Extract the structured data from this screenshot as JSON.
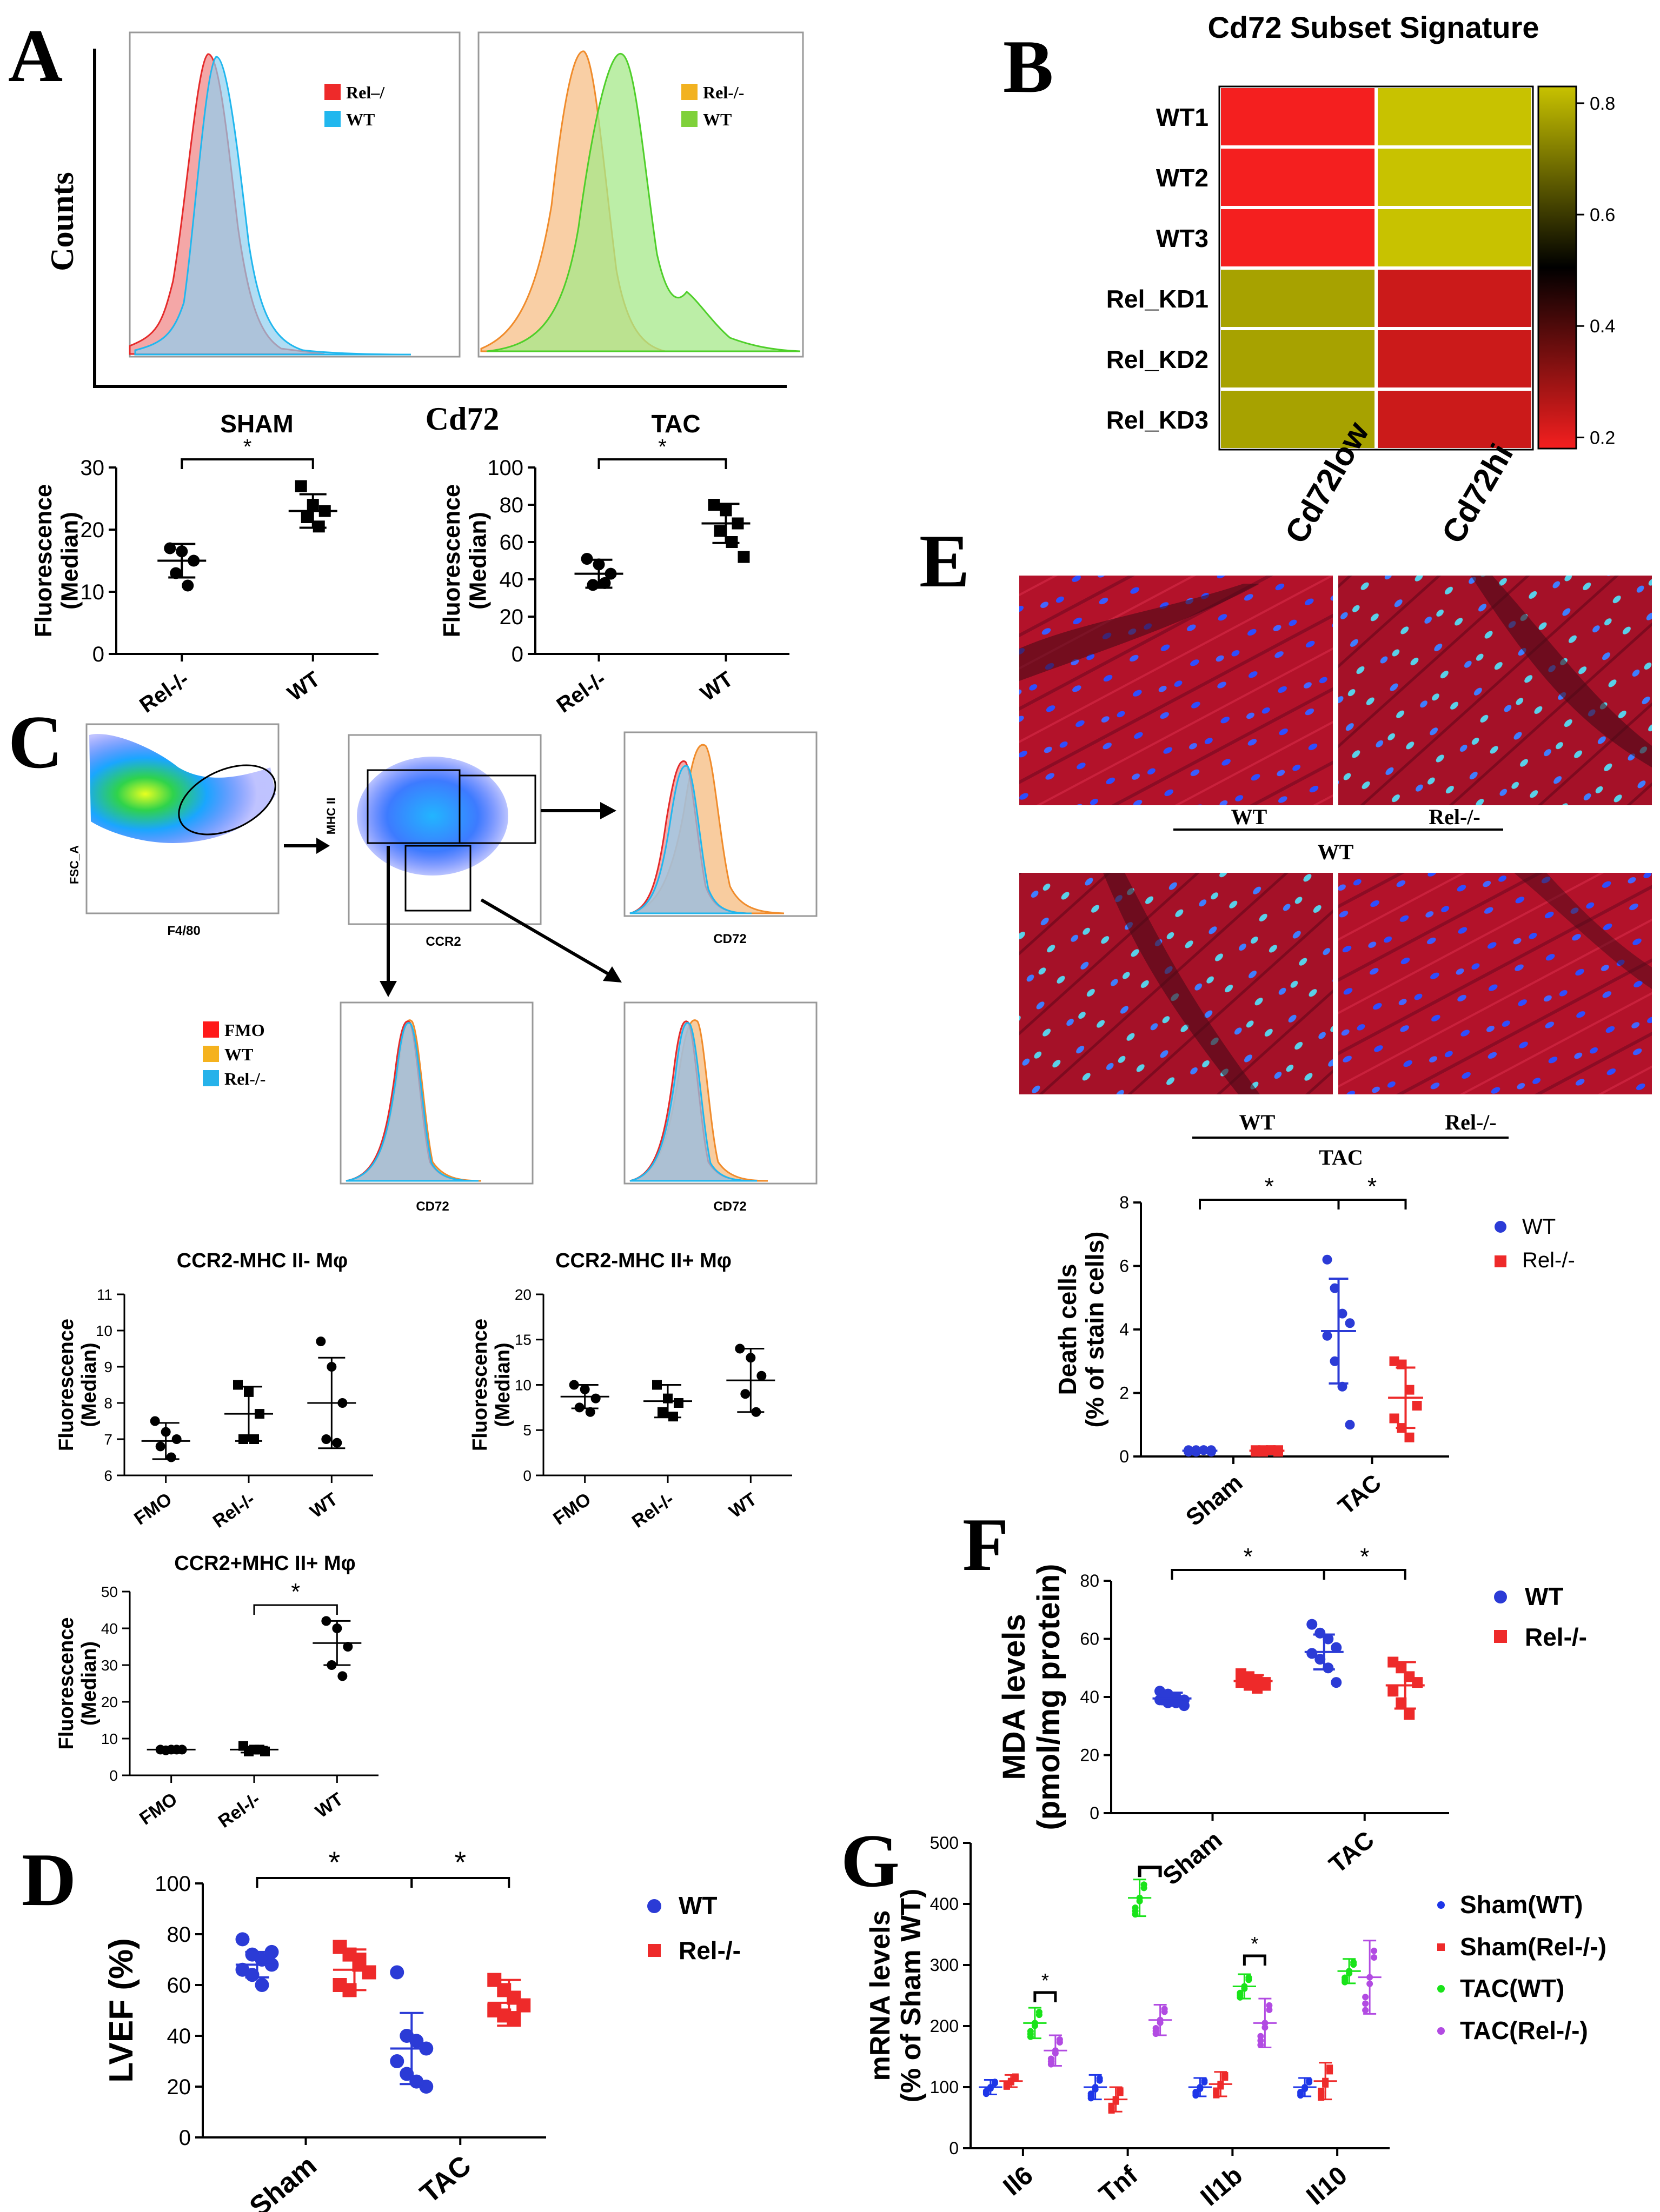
{
  "panel_letters": [
    "A",
    "B",
    "C",
    "D",
    "E",
    "F",
    "G"
  ],
  "colors": {
    "wt_blue": "#2b3bd6",
    "rel_red": "#ee2a2a",
    "sham_wt": "#1e36e8",
    "sham_rel": "#ee2a2a",
    "tac_wt": "#19e319",
    "tac_rel": "#b24be2",
    "hist_red": "#f08a8a",
    "hist_blue": "#8fcff0",
    "hist_orange": "#f7c38e",
    "hist_green": "#a6e889",
    "heat_low": "#f41f1f",
    "heat_mid": "#000000",
    "heat_high": "#c8c200",
    "tissue": "#b3122a",
    "nuclei": "#2d4dff"
  },
  "panelA": {
    "ylabel": "Counts",
    "xlabel": "Cd72",
    "hist_left": {
      "legend": [
        "Rel–/",
        "WT"
      ],
      "legend_colors": [
        "#ee2a2a",
        "#21b7ee"
      ]
    },
    "hist_right": {
      "legend": [
        "Rel-/-",
        "WT"
      ],
      "legend_colors": [
        "#f2b220",
        "#7fd13a"
      ]
    },
    "scatter_sham": {
      "title": "SHAM",
      "sig": "*",
      "ylabel1": "Fluorescence",
      "ylabel2": "(Median)",
      "yticks": [
        "0",
        "10",
        "20",
        "30"
      ],
      "xticks": [
        "Rel-/-",
        "WT"
      ]
    },
    "scatter_tac": {
      "title": "TAC",
      "sig": "*",
      "ylabel1": "Fluorescence",
      "ylabel2": "(Median)",
      "yticks": [
        "0",
        "20",
        "40",
        "60",
        "80",
        "100"
      ],
      "xticks": [
        "Rel-/-",
        "WT"
      ]
    }
  },
  "panelB": {
    "title": "Cd72 Subset Signature",
    "rows": [
      "WT1",
      "WT2",
      "WT3",
      "Rel_KD1",
      "Rel_KD2",
      "Rel_KD3"
    ],
    "cols": [
      "Cd72low",
      "Cd72hi"
    ],
    "colorbar_ticks": [
      "0.8",
      "0.6",
      "0.4",
      "0.2"
    ]
  },
  "panelC": {
    "dot1": {
      "ylabel": "FSC_A",
      "xlabel": "F4/80"
    },
    "dot2": {
      "ylabel": "MHC II",
      "xlabel": "CCR2"
    },
    "hist_xlabel": "CD72",
    "legend": [
      "FMO",
      "WT",
      "Rel-/-"
    ],
    "legend_colors": [
      "#ff1a1a",
      "#f5b21e",
      "#26b2ea"
    ],
    "scatter1": {
      "title": "CCR2-MHC II- Mφ",
      "ylabel1": "Fluorescence",
      "ylabel2": "(Median)",
      "yticks": [
        "6",
        "7",
        "8",
        "9",
        "10",
        "11"
      ],
      "xticks": [
        "FMO",
        "Rel-/-",
        "WT"
      ]
    },
    "scatter2": {
      "title": "CCR2-MHC II+ Mφ",
      "ylabel1": "Fluorescence",
      "ylabel2": "(Median)",
      "yticks": [
        "0",
        "5",
        "10",
        "15",
        "20"
      ],
      "xticks": [
        "FMO",
        "Rel-/-",
        "WT"
      ]
    },
    "scatter3": {
      "title": "CCR2+MHC II+ Mφ",
      "sig": "*",
      "ylabel1": "Fluorescence",
      "ylabel2": "(Median)",
      "yticks": [
        "0",
        "10",
        "20",
        "30",
        "40",
        "50"
      ],
      "xticks": [
        "FMO",
        "Rel-/-",
        "WT"
      ]
    }
  },
  "panelD": {
    "ylabel": "LVEF (%)",
    "yticks": [
      "0",
      "20",
      "40",
      "60",
      "80",
      "100"
    ],
    "xticks": [
      "Sham",
      "TAC"
    ],
    "legend": [
      "WT",
      "Rel-/-"
    ],
    "sig": [
      "*",
      "*"
    ]
  },
  "panelE": {
    "labels_top": [
      "WT",
      "Rel-/-"
    ],
    "group_top": "WT",
    "labels_bottom": [
      "WT",
      "Rel-/-"
    ],
    "group_bottom": "TAC",
    "chart": {
      "ylabel1": "Death cells",
      "ylabel2": "(% of stain cells)",
      "yticks": [
        "0",
        "2",
        "4",
        "6",
        "8"
      ],
      "xticks": [
        "Sham",
        "TAC"
      ],
      "legend": [
        "WT",
        "Rel-/-"
      ],
      "sig": [
        "*",
        "*"
      ]
    }
  },
  "panelF": {
    "ylabel1": "MDA levels",
    "ylabel2": "(pmol/mg protein)",
    "yticks": [
      "0",
      "20",
      "40",
      "60",
      "80"
    ],
    "xticks": [
      "Sham",
      "TAC"
    ],
    "legend": [
      "WT",
      "Rel-/-"
    ],
    "sig": [
      "*",
      "*"
    ]
  },
  "panelG": {
    "ylabel1": "mRNA levels",
    "ylabel2": "(% of Sham WT)",
    "yticks": [
      "0",
      "100",
      "200",
      "300",
      "400",
      "500"
    ],
    "xticks": [
      "Il6",
      "Tnf",
      "Il1b",
      "Il10"
    ],
    "legend": [
      "Sham(WT)",
      "Sham(Rel-/-)",
      "TAC(WT)",
      "TAC(Rel-/-)"
    ],
    "sig": [
      "*",
      "*"
    ]
  },
  "chart_data": [
    {
      "id": "A_sham",
      "type": "scatter",
      "title": "SHAM",
      "ylabel": "Fluorescence (Median)",
      "ylim": [
        0,
        30
      ],
      "categories": [
        "Rel-/-",
        "WT"
      ],
      "series": [
        {
          "category": "Rel-/-",
          "points": [
            17,
            16.5,
            15,
            13,
            11
          ],
          "mean": 15,
          "sd": 2.7
        },
        {
          "category": "WT",
          "points": [
            27,
            24,
            23,
            22,
            20.5
          ],
          "mean": 23,
          "sd": 2.7
        }
      ]
    },
    {
      "id": "A_tac",
      "type": "scatter",
      "title": "TAC",
      "ylabel": "Fluorescence (Median)",
      "ylim": [
        0,
        100
      ],
      "categories": [
        "Rel-/-",
        "WT"
      ],
      "series": [
        {
          "category": "Rel-/-",
          "points": [
            51,
            48,
            43,
            37,
            38
          ],
          "mean": 43,
          "sd": 7.5
        },
        {
          "category": "WT",
          "points": [
            80,
            77,
            70,
            66,
            60,
            52
          ],
          "mean": 70,
          "sd": 10.5
        }
      ]
    },
    {
      "id": "B_heatmap",
      "type": "heatmap",
      "title": "Cd72 Subset Signature",
      "rows": [
        "WT1",
        "WT2",
        "WT3",
        "Rel_KD1",
        "Rel_KD2",
        "Rel_KD3"
      ],
      "cols": [
        "Cd72low",
        "Cd72hi"
      ],
      "values": [
        [
          0.2,
          0.8
        ],
        [
          0.2,
          0.8
        ],
        [
          0.2,
          0.8
        ],
        [
          0.75,
          0.25
        ],
        [
          0.75,
          0.25
        ],
        [
          0.75,
          0.25
        ]
      ],
      "zlim": [
        0.2,
        0.8
      ]
    },
    {
      "id": "C_s1",
      "type": "scatter",
      "title": "CCR2-MHC II- Mφ",
      "ylabel": "Fluorescence (Median)",
      "ylim": [
        6,
        11
      ],
      "categories": [
        "FMO",
        "Rel-/-",
        "WT"
      ],
      "series": [
        {
          "category": "FMO",
          "points": [
            7.5,
            7.2,
            7.0,
            6.8,
            6.5
          ],
          "mean": 6.95,
          "sd": 0.5
        },
        {
          "category": "Rel-/-",
          "points": [
            8.5,
            8.3,
            7.7,
            7.0,
            7.0
          ],
          "mean": 7.7,
          "sd": 0.75
        },
        {
          "category": "WT",
          "points": [
            9.7,
            9.0,
            8.0,
            7.0,
            6.9
          ],
          "mean": 8.0,
          "sd": 1.25
        }
      ]
    },
    {
      "id": "C_s2",
      "type": "scatter",
      "title": "CCR2-MHC II+ Mφ",
      "ylabel": "Fluorescence (Median)",
      "ylim": [
        0,
        20
      ],
      "categories": [
        "FMO",
        "Rel-/-",
        "WT"
      ],
      "series": [
        {
          "category": "FMO",
          "points": [
            10,
            9.5,
            8.5,
            7.5,
            7.0
          ],
          "mean": 8.7,
          "sd": 1.3
        },
        {
          "category": "Rel-/-",
          "points": [
            10,
            8.5,
            8.0,
            7.0,
            6.5
          ],
          "mean": 8.2,
          "sd": 1.8
        },
        {
          "category": "WT",
          "points": [
            14,
            13,
            11,
            9,
            7
          ],
          "mean": 10.5,
          "sd": 3.5
        }
      ]
    },
    {
      "id": "C_s3",
      "type": "scatter",
      "title": "CCR2+MHC II+ Mφ",
      "ylabel": "Fluorescence (Median)",
      "ylim": [
        0,
        50
      ],
      "categories": [
        "FMO",
        "Rel-/-",
        "WT"
      ],
      "series": [
        {
          "category": "FMO",
          "points": [
            7,
            7,
            7,
            6.8,
            7
          ],
          "mean": 7,
          "sd": 0.3
        },
        {
          "category": "Rel-/-",
          "points": [
            8,
            7,
            6.5,
            6.5,
            7
          ],
          "mean": 7,
          "sd": 0.8
        },
        {
          "category": "WT",
          "points": [
            42,
            40,
            35,
            30,
            27
          ],
          "mean": 36,
          "sd": 6
        }
      ]
    },
    {
      "id": "D_lvef",
      "type": "scatter",
      "ylabel": "LVEF (%)",
      "ylim": [
        0,
        100
      ],
      "categories": [
        "Sham",
        "TAC"
      ],
      "legend": [
        "WT",
        "Rel-/-"
      ],
      "series": [
        {
          "name": "WT",
          "category": "Sham",
          "points": [
            78,
            72,
            70,
            68,
            66,
            64,
            60,
            73
          ],
          "mean": 68,
          "sd": 5
        },
        {
          "name": "Rel-/-",
          "category": "Sham",
          "points": [
            75,
            72,
            68,
            65,
            60,
            58,
            70
          ],
          "mean": 66,
          "sd": 8
        },
        {
          "name": "WT",
          "category": "TAC",
          "points": [
            65,
            40,
            38,
            35,
            30,
            25,
            22,
            20
          ],
          "mean": 35,
          "sd": 14
        },
        {
          "name": "Rel-/-",
          "category": "TAC",
          "points": [
            62,
            58,
            55,
            52,
            50,
            48,
            47
          ],
          "mean": 53,
          "sd": 9
        }
      ]
    },
    {
      "id": "E_death",
      "type": "scatter",
      "ylabel": "Death cells (% of stain cells)",
      "ylim": [
        0,
        8
      ],
      "categories": [
        "Sham",
        "TAC"
      ],
      "legend": [
        "WT",
        "Rel-/-"
      ],
      "series": [
        {
          "name": "WT",
          "category": "Sham",
          "points": [
            0.2,
            0.15,
            0.2,
            0.2,
            0.15,
            0.2,
            0.2,
            0.15
          ],
          "mean": 0.18,
          "sd": 0.05
        },
        {
          "name": "Rel-/-",
          "category": "Sham",
          "points": [
            0.2,
            0.15,
            0.2,
            0.2,
            0.15,
            0.2,
            0.2,
            0.15
          ],
          "mean": 0.18,
          "sd": 0.05
        },
        {
          "name": "WT",
          "category": "TAC",
          "points": [
            6.2,
            5.3,
            4.5,
            4.2,
            3.8,
            3.0,
            2.2,
            1.0
          ],
          "mean": 3.95,
          "sd": 1.65
        },
        {
          "name": "Rel-/-",
          "category": "TAC",
          "points": [
            3.0,
            2.9,
            2.1,
            1.6,
            1.2,
            0.9,
            0.6
          ],
          "mean": 1.85,
          "sd": 0.95
        }
      ]
    },
    {
      "id": "F_mda",
      "type": "scatter",
      "ylabel": "MDA levels (pmol/mg protein)",
      "ylim": [
        0,
        80
      ],
      "categories": [
        "Sham",
        "TAC"
      ],
      "legend": [
        "WT",
        "Rel-/-"
      ],
      "series": [
        {
          "name": "WT",
          "category": "Sham",
          "points": [
            42,
            41,
            40,
            39,
            39,
            38,
            38,
            37
          ],
          "mean": 39.5,
          "sd": 2
        },
        {
          "name": "Rel-/-",
          "category": "Sham",
          "points": [
            48,
            47,
            46,
            45,
            45,
            44,
            43,
            44
          ],
          "mean": 45.5,
          "sd": 2
        },
        {
          "name": "WT",
          "category": "TAC",
          "points": [
            65,
            62,
            60,
            57,
            55,
            53,
            50,
            45
          ],
          "mean": 55.5,
          "sd": 6
        },
        {
          "name": "Rel-/-",
          "category": "TAC",
          "points": [
            52,
            50,
            47,
            45,
            42,
            38,
            34
          ],
          "mean": 44,
          "sd": 8
        }
      ]
    },
    {
      "id": "G_mrna",
      "type": "scatter",
      "ylabel": "mRNA levels (% of Sham WT)",
      "ylim": [
        0,
        500
      ],
      "categories": [
        "Il6",
        "Tnf",
        "Il1b",
        "Il10"
      ],
      "legend": [
        "Sham(WT)",
        "Sham(Rel-/-)",
        "TAC(WT)",
        "TAC(Rel-/-)"
      ],
      "series": [
        {
          "name": "Sham(WT)",
          "values": [
            100,
            100,
            100,
            100
          ],
          "sd": [
            12,
            20,
            15,
            15
          ]
        },
        {
          "name": "Sham(Rel-/-)",
          "values": [
            110,
            80,
            105,
            110
          ],
          "sd": [
            10,
            20,
            20,
            30
          ]
        },
        {
          "name": "TAC(WT)",
          "values": [
            205,
            410,
            265,
            290
          ],
          "sd": [
            25,
            30,
            20,
            20
          ]
        },
        {
          "name": "TAC(Rel-/-)",
          "values": [
            160,
            210,
            205,
            280
          ],
          "sd": [
            25,
            25,
            40,
            60
          ]
        }
      ]
    }
  ]
}
